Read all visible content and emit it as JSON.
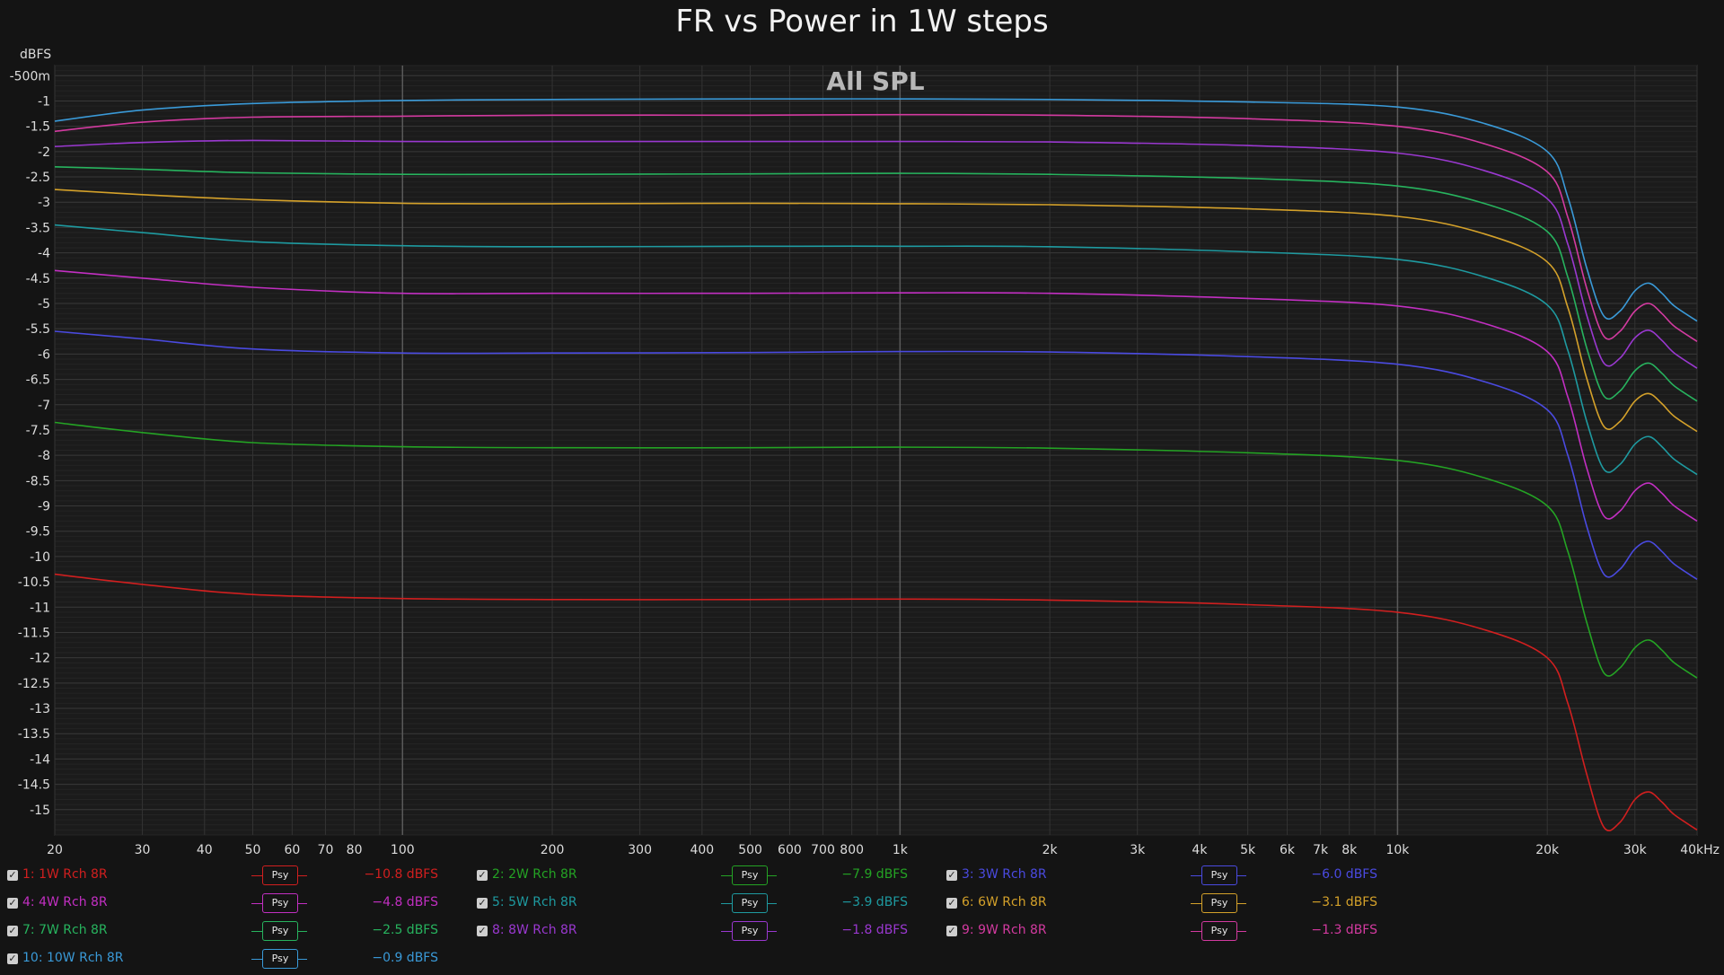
{
  "chart_data": {
    "type": "line",
    "title": "FR vs Power in 1W steps",
    "subtitle": "All SPL",
    "ylabel": "dBFS",
    "xlabel": "",
    "x_scale": "log",
    "xlim": [
      20,
      40000
    ],
    "ylim": [
      -15.5,
      -0.3
    ],
    "grid": true,
    "x_ticks": [
      {
        "v": 20,
        "t": "20"
      },
      {
        "v": 30,
        "t": "30"
      },
      {
        "v": 40,
        "t": "40"
      },
      {
        "v": 50,
        "t": "50"
      },
      {
        "v": 60,
        "t": "60"
      },
      {
        "v": 70,
        "t": "70"
      },
      {
        "v": 80,
        "t": "80"
      },
      {
        "v": 100,
        "t": "100"
      },
      {
        "v": 200,
        "t": "200"
      },
      {
        "v": 300,
        "t": "300"
      },
      {
        "v": 400,
        "t": "400"
      },
      {
        "v": 500,
        "t": "500"
      },
      {
        "v": 600,
        "t": "600"
      },
      {
        "v": 700,
        "t": "700"
      },
      {
        "v": 800,
        "t": "800"
      },
      {
        "v": 1000,
        "t": "1k"
      },
      {
        "v": 2000,
        "t": "2k"
      },
      {
        "v": 3000,
        "t": "3k"
      },
      {
        "v": 4000,
        "t": "4k"
      },
      {
        "v": 5000,
        "t": "5k"
      },
      {
        "v": 6000,
        "t": "6k"
      },
      {
        "v": 7000,
        "t": "7k"
      },
      {
        "v": 8000,
        "t": "8k"
      },
      {
        "v": 10000,
        "t": "10k"
      },
      {
        "v": 20000,
        "t": "20k"
      },
      {
        "v": 30000,
        "t": "30k"
      },
      {
        "v": 40000,
        "t": "40kHz"
      }
    ],
    "x_minor_grid": [
      90,
      900,
      9000
    ],
    "y_ticks": [
      {
        "v": -0.5,
        "t": "-500m"
      },
      {
        "v": -1,
        "t": "-1"
      },
      {
        "v": -1.5,
        "t": "-1.5"
      },
      {
        "v": -2,
        "t": "-2"
      },
      {
        "v": -2.5,
        "t": "-2.5"
      },
      {
        "v": -3,
        "t": "-3"
      },
      {
        "v": -3.5,
        "t": "-3.5"
      },
      {
        "v": -4,
        "t": "-4"
      },
      {
        "v": -4.5,
        "t": "-4.5"
      },
      {
        "v": -5,
        "t": "-5"
      },
      {
        "v": -5.5,
        "t": "-5.5"
      },
      {
        "v": -6,
        "t": "-6"
      },
      {
        "v": -6.5,
        "t": "-6.5"
      },
      {
        "v": -7,
        "t": "-7"
      },
      {
        "v": -7.5,
        "t": "-7.5"
      },
      {
        "v": -8,
        "t": "-8"
      },
      {
        "v": -8.5,
        "t": "-8.5"
      },
      {
        "v": -9,
        "t": "-9"
      },
      {
        "v": -9.5,
        "t": "-9.5"
      },
      {
        "v": -10,
        "t": "-10"
      },
      {
        "v": -10.5,
        "t": "-10.5"
      },
      {
        "v": -11,
        "t": "-11"
      },
      {
        "v": -11.5,
        "t": "-11.5"
      },
      {
        "v": -12,
        "t": "-12"
      },
      {
        "v": -12.5,
        "t": "-12.5"
      },
      {
        "v": -13,
        "t": "-13"
      },
      {
        "v": -13.5,
        "t": "-13.5"
      },
      {
        "v": -14,
        "t": "-14"
      },
      {
        "v": -14.5,
        "t": "-14.5"
      },
      {
        "v": -15,
        "t": "-15"
      }
    ],
    "x": [
      20,
      30,
      50,
      100,
      200,
      500,
      1000,
      2000,
      5000,
      10000,
      15000,
      20000,
      22000,
      24000,
      26000,
      28000,
      30000,
      32000,
      34000,
      36000,
      40000
    ],
    "series": [
      {
        "name": "1: 1W Rch 8R",
        "color": "#d11f1f",
        "values": [
          -10.35,
          -10.55,
          -10.75,
          -10.83,
          -10.85,
          -10.85,
          -10.84,
          -10.86,
          -10.95,
          -11.1,
          -11.45,
          -12.0,
          -12.9,
          -14.3,
          -15.35,
          -15.25,
          -14.8,
          -14.65,
          -14.85,
          -15.1,
          -15.4
        ]
      },
      {
        "name": "2: 2W Rch 8R",
        "color": "#24a324",
        "values": [
          -7.35,
          -7.55,
          -7.75,
          -7.83,
          -7.85,
          -7.85,
          -7.84,
          -7.86,
          -7.95,
          -8.1,
          -8.45,
          -9.0,
          -9.9,
          -11.3,
          -12.3,
          -12.2,
          -11.8,
          -11.65,
          -11.85,
          -12.1,
          -12.4
        ]
      },
      {
        "name": "3: 3W Rch 8R",
        "color": "#4a4ae0",
        "values": [
          -5.55,
          -5.7,
          -5.9,
          -5.98,
          -5.98,
          -5.97,
          -5.95,
          -5.96,
          -6.05,
          -6.2,
          -6.55,
          -7.1,
          -8.0,
          -9.4,
          -10.35,
          -10.25,
          -9.85,
          -9.7,
          -9.9,
          -10.15,
          -10.45
        ]
      },
      {
        "name": "4: 4W Rch 8R",
        "color": "#c22fc2",
        "values": [
          -4.35,
          -4.5,
          -4.68,
          -4.8,
          -4.8,
          -4.8,
          -4.79,
          -4.8,
          -4.9,
          -5.05,
          -5.4,
          -5.95,
          -6.85,
          -8.25,
          -9.2,
          -9.1,
          -8.7,
          -8.55,
          -8.75,
          -9.0,
          -9.3
        ]
      },
      {
        "name": "5: 5W Rch 8R",
        "color": "#1e9aa0",
        "values": [
          -3.45,
          -3.6,
          -3.78,
          -3.86,
          -3.88,
          -3.87,
          -3.87,
          -3.88,
          -3.98,
          -4.13,
          -4.48,
          -5.03,
          -5.93,
          -7.33,
          -8.28,
          -8.18,
          -7.78,
          -7.63,
          -7.83,
          -8.08,
          -8.38
        ]
      },
      {
        "name": "6: 6W Rch 8R",
        "color": "#d4a12a",
        "values": [
          -2.75,
          -2.85,
          -2.95,
          -3.02,
          -3.03,
          -3.02,
          -3.03,
          -3.05,
          -3.13,
          -3.28,
          -3.63,
          -4.18,
          -5.08,
          -6.48,
          -7.43,
          -7.33,
          -6.93,
          -6.78,
          -6.98,
          -7.23,
          -7.53
        ]
      },
      {
        "name": "7: 7W Rch 8R",
        "color": "#27b35e",
        "values": [
          -2.3,
          -2.35,
          -2.42,
          -2.45,
          -2.45,
          -2.44,
          -2.43,
          -2.45,
          -2.53,
          -2.68,
          -3.03,
          -3.58,
          -4.48,
          -5.88,
          -6.83,
          -6.73,
          -6.33,
          -6.18,
          -6.38,
          -6.63,
          -6.93
        ]
      },
      {
        "name": "8: 8W Rch 8R",
        "color": "#9a38d0",
        "values": [
          -1.9,
          -1.82,
          -1.78,
          -1.8,
          -1.8,
          -1.8,
          -1.8,
          -1.81,
          -1.88,
          -2.03,
          -2.38,
          -2.93,
          -3.83,
          -5.23,
          -6.18,
          -6.08,
          -5.68,
          -5.53,
          -5.73,
          -5.98,
          -6.28
        ]
      },
      {
        "name": "9: 9W Rch 8R",
        "color": "#d33aa0",
        "values": [
          -1.6,
          -1.42,
          -1.32,
          -1.3,
          -1.28,
          -1.28,
          -1.27,
          -1.28,
          -1.35,
          -1.5,
          -1.85,
          -2.4,
          -3.3,
          -4.7,
          -5.65,
          -5.55,
          -5.15,
          -5.0,
          -5.2,
          -5.45,
          -5.75
        ]
      },
      {
        "name": "10: 10W Rch 8R",
        "color": "#3a9ad8",
        "values": [
          -1.4,
          -1.18,
          -1.05,
          -0.99,
          -0.97,
          -0.96,
          -0.96,
          -0.97,
          -1.02,
          -1.12,
          -1.45,
          -2.0,
          -2.9,
          -4.3,
          -5.25,
          -5.15,
          -4.75,
          -4.6,
          -4.8,
          -5.05,
          -5.35
        ]
      }
    ]
  },
  "legend": [
    {
      "label": "1: 1W Rch 8R",
      "psy": "Psy",
      "value": "−10.8 dBFS",
      "color": "#d11f1f"
    },
    {
      "label": "2: 2W Rch 8R",
      "psy": "Psy",
      "value": "−7.9 dBFS",
      "color": "#24a324"
    },
    {
      "label": "3: 3W Rch 8R",
      "psy": "Psy",
      "value": "−6.0 dBFS",
      "color": "#4a4ae0"
    },
    {
      "label": "4: 4W Rch 8R",
      "psy": "Psy",
      "value": "−4.8 dBFS",
      "color": "#c22fc2"
    },
    {
      "label": "5: 5W Rch 8R",
      "psy": "Psy",
      "value": "−3.9 dBFS",
      "color": "#1e9aa0"
    },
    {
      "label": "6: 6W Rch 8R",
      "psy": "Psy",
      "value": "−3.1 dBFS",
      "color": "#d4a12a"
    },
    {
      "label": "7: 7W Rch 8R",
      "psy": "Psy",
      "value": "−2.5 dBFS",
      "color": "#27b35e"
    },
    {
      "label": "8: 8W Rch 8R",
      "psy": "Psy",
      "value": "−1.8 dBFS",
      "color": "#9a38d0"
    },
    {
      "label": "9: 9W Rch 8R",
      "psy": "Psy",
      "value": "−1.3 dBFS",
      "color": "#d33aa0"
    },
    {
      "label": "10: 10W Rch 8R",
      "psy": "Psy",
      "value": "−0.9 dBFS",
      "color": "#3a9ad8"
    }
  ]
}
